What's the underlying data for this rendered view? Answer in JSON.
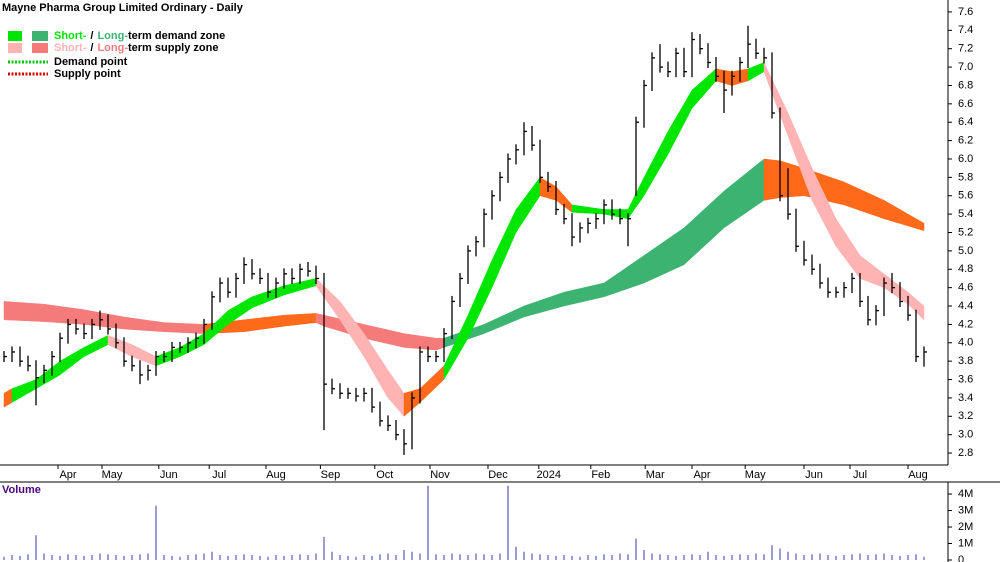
{
  "title": "Mayne Pharma Group Limited Ordinary - Daily",
  "legend": [
    {
      "short": "Short-",
      "sep": "/",
      "long": "Long-",
      "rest": "term demand zone",
      "short_color": "#00e600",
      "long_color": "#3cb371"
    },
    {
      "short": "Short-",
      "sep": "/",
      "long": "Long-",
      "rest": "term supply zone",
      "short_color": "#ffb3b3",
      "long_color": "#f57b7b"
    },
    {
      "label": "Demand point",
      "color": "#00cc00"
    },
    {
      "label": "Supply point",
      "color": "#e00000"
    }
  ],
  "chart_data": [
    {
      "type": "ohlc",
      "color": "#000000",
      "xlim": [
        -0.5,
        118
      ],
      "xticks": [
        {
          "value": 8,
          "label": "Apr"
        },
        {
          "value": 13.5,
          "label": "May"
        },
        {
          "value": 20.6,
          "label": "Jun"
        },
        {
          "value": 26.9,
          "label": "Jul"
        },
        {
          "value": 34,
          "label": "Aug"
        },
        {
          "value": 40.8,
          "label": "Sep"
        },
        {
          "value": 47.6,
          "label": "Oct"
        },
        {
          "value": 54.5,
          "label": "Nov"
        },
        {
          "value": 61.75,
          "label": "Dec"
        },
        {
          "value": 68.1,
          "label": "2024"
        },
        {
          "value": 74.6,
          "label": "Feb"
        },
        {
          "value": 81.4,
          "label": "Mar"
        },
        {
          "value": 87.25,
          "label": "Apr"
        },
        {
          "value": 93.9,
          "label": "May"
        },
        {
          "value": 101.25,
          "label": "Jun"
        },
        {
          "value": 107,
          "label": "Jul"
        },
        {
          "value": 114.25,
          "label": "Aug"
        }
      ],
      "ylim": [
        2.67,
        7.73
      ],
      "yticks": [
        2.8,
        {
          "value": 3,
          "label": "3.0"
        },
        3.2,
        3.4,
        3.6,
        3.8,
        {
          "value": 4,
          "label": "4.0"
        },
        4.2,
        4.4,
        4.6,
        4.8,
        {
          "value": 5,
          "label": "5.0"
        },
        5.2,
        5.4,
        5.6,
        5.8,
        {
          "value": 6,
          "label": "6.0"
        },
        6.2,
        6.4,
        6.6,
        6.8,
        {
          "value": 7,
          "label": "7.0"
        },
        7.2,
        7.4,
        7.6
      ],
      "high": [
        3.91,
        3.96,
        3.96,
        3.86,
        3.81,
        3.76,
        3.91,
        4.11,
        4.26,
        4.26,
        4.21,
        4.26,
        4.35,
        4.31,
        4.21,
        4.06,
        3.86,
        3.81,
        3.76,
        3.91,
        3.91,
        4.01,
        4.01,
        4.06,
        4.11,
        4.26,
        4.56,
        4.71,
        4.71,
        4.76,
        4.93,
        4.91,
        4.81,
        4.76,
        4.71,
        4.81,
        4.81,
        4.86,
        4.88,
        4.84,
        4.76,
        3.61,
        3.56,
        3.51,
        3.51,
        3.51,
        3.51,
        3.36,
        3.21,
        3.16,
        3.06,
        3.46,
        3.96,
        3.96,
        3.91,
        4.16,
        4.51,
        4.76,
        5.06,
        5.16,
        5.46,
        5.66,
        5.86,
        6.06,
        6.16,
        6.4,
        6.36,
        6.21,
        5.86,
        5.76,
        5.51,
        5.41,
        5.31,
        5.36,
        5.41,
        5.56,
        5.56,
        5.46,
        5.41,
        6.46,
        6.86,
        7.16,
        7.25,
        7.06,
        7.21,
        7.21,
        7.38,
        7.36,
        7.26,
        7.11,
        6.96,
        6.96,
        7.11,
        7.45,
        7.31,
        7.21,
        7.16,
        6.56,
        5.9,
        5.46,
        5.11,
        4.96,
        4.86,
        4.71,
        4.61,
        4.66,
        4.76,
        4.76,
        4.51,
        4.41,
        4.71,
        4.76,
        4.66,
        4.51,
        4.36,
        3.96
      ],
      "low": [
        3.79,
        3.79,
        3.74,
        3.69,
        3.32,
        3.56,
        3.64,
        3.79,
        3.99,
        4.09,
        4.04,
        4.04,
        4.14,
        4.09,
        3.94,
        3.74,
        3.69,
        3.55,
        3.59,
        3.64,
        3.79,
        3.79,
        3.89,
        3.89,
        3.94,
        3.99,
        4.14,
        4.44,
        4.49,
        4.49,
        4.64,
        4.69,
        4.64,
        4.49,
        4.49,
        4.59,
        4.64,
        4.64,
        4.72,
        4.64,
        3.05,
        3.44,
        3.39,
        3.39,
        3.36,
        3.36,
        3.24,
        3.09,
        3.04,
        2.94,
        2.78,
        2.84,
        3.34,
        3.79,
        3.79,
        3.79,
        4.04,
        4.39,
        4.64,
        4.94,
        5.04,
        5.34,
        5.54,
        5.74,
        5.94,
        6.04,
        6.09,
        5.74,
        5.64,
        5.39,
        5.29,
        5.05,
        5.09,
        5.19,
        5.24,
        5.29,
        5.34,
        5.29,
        5.05,
        5.6,
        6.34,
        6.74,
        6.94,
        6.89,
        6.89,
        6.89,
        6.89,
        7.14,
        6.99,
        6.84,
        6.5,
        6.69,
        6.84,
        6.99,
        7.09,
        7.04,
        6.44,
        5.54,
        5.34,
        4.99,
        4.84,
        4.74,
        4.59,
        4.49,
        4.49,
        4.49,
        4.54,
        4.39,
        4.19,
        4.19,
        4.29,
        4.54,
        4.39,
        4.24,
        3.79,
        3.74
      ],
      "close": [
        3.85,
        3.9,
        3.8,
        3.75,
        3.62,
        3.7,
        3.85,
        4.05,
        4.2,
        4.15,
        4.1,
        4.2,
        4.25,
        4.15,
        4.0,
        3.8,
        3.75,
        3.65,
        3.7,
        3.85,
        3.85,
        3.95,
        3.95,
        4.0,
        4.05,
        4.2,
        4.5,
        4.65,
        4.55,
        4.7,
        4.85,
        4.75,
        4.7,
        4.55,
        4.65,
        4.75,
        4.7,
        4.8,
        4.78,
        4.7,
        3.55,
        3.5,
        3.45,
        3.45,
        3.42,
        3.45,
        3.3,
        3.15,
        3.1,
        3.0,
        2.9,
        3.4,
        3.9,
        3.85,
        3.85,
        4.1,
        4.45,
        4.7,
        5.0,
        5.1,
        5.4,
        5.6,
        5.8,
        6.0,
        6.1,
        6.3,
        6.15,
        5.8,
        5.7,
        5.45,
        5.35,
        5.15,
        5.25,
        5.3,
        5.35,
        5.5,
        5.4,
        5.35,
        5.35,
        6.4,
        6.8,
        7.1,
        7.0,
        6.95,
        7.15,
        6.95,
        7.3,
        7.2,
        7.05,
        6.9,
        6.75,
        6.9,
        7.05,
        7.25,
        7.15,
        7.1,
        6.5,
        5.6,
        5.4,
        5.05,
        4.9,
        4.8,
        4.65,
        4.55,
        4.55,
        4.6,
        4.7,
        4.45,
        4.25,
        4.35,
        4.65,
        4.6,
        4.45,
        4.3,
        3.85,
        3.9
      ],
      "long_term_zones": [
        {
          "color": "#f57b7b",
          "x": [
            0,
            5,
            10,
            15,
            20,
            25
          ],
          "upper": [
            4.45,
            4.42,
            4.36,
            4.28,
            4.22,
            4.2
          ],
          "lower": [
            4.25,
            4.23,
            4.2,
            4.15,
            4.12,
            4.1
          ]
        },
        {
          "color": "#ff6a1a",
          "x": [
            25,
            30,
            35,
            39
          ],
          "upper": [
            4.2,
            4.25,
            4.3,
            4.32
          ],
          "lower": [
            4.1,
            4.12,
            4.18,
            4.22
          ]
        },
        {
          "color": "#f57b7b",
          "x": [
            39,
            40,
            45,
            50,
            54,
            55
          ],
          "upper": [
            4.32,
            4.3,
            4.2,
            4.1,
            4.05,
            4.05
          ],
          "lower": [
            4.22,
            4.18,
            4.05,
            3.95,
            3.92,
            3.95
          ]
        },
        {
          "color": "#3cb371",
          "x": [
            55,
            60,
            65,
            70,
            75,
            80,
            85,
            90,
            95
          ],
          "upper": [
            4.05,
            4.2,
            4.4,
            4.55,
            4.65,
            4.95,
            5.25,
            5.65,
            6.0
          ],
          "lower": [
            3.95,
            4.1,
            4.28,
            4.4,
            4.5,
            4.65,
            4.85,
            5.25,
            5.55
          ]
        },
        {
          "color": "#ff6a1a",
          "x": [
            95,
            97,
            100,
            105,
            110,
            115
          ],
          "upper": [
            6.0,
            5.98,
            5.9,
            5.75,
            5.55,
            5.3
          ],
          "lower": [
            5.55,
            5.58,
            5.6,
            5.5,
            5.35,
            5.22
          ]
        }
      ],
      "short_term_zones": [
        {
          "color": "#ff6a1a",
          "x": [
            0,
            1
          ],
          "upper": [
            3.45,
            3.5
          ],
          "lower": [
            3.3,
            3.35
          ]
        },
        {
          "color": "#00e600",
          "x": [
            1,
            4,
            7,
            10,
            13
          ],
          "upper": [
            3.5,
            3.6,
            3.8,
            3.95,
            4.08
          ],
          "lower": [
            3.35,
            3.5,
            3.65,
            3.85,
            3.98
          ]
        },
        {
          "color": "#ffb3b3",
          "x": [
            13,
            16,
            19
          ],
          "upper": [
            4.08,
            3.98,
            3.85
          ],
          "lower": [
            3.98,
            3.85,
            3.75
          ]
        },
        {
          "color": "#00e600",
          "x": [
            19,
            22,
            25,
            28,
            31,
            35,
            39
          ],
          "upper": [
            3.85,
            3.95,
            4.1,
            4.35,
            4.5,
            4.62,
            4.7
          ],
          "lower": [
            3.75,
            3.85,
            3.98,
            4.2,
            4.38,
            4.52,
            4.62
          ]
        },
        {
          "color": "#ffb3b3",
          "x": [
            39,
            42,
            45,
            48,
            50
          ],
          "upper": [
            4.7,
            4.45,
            4.1,
            3.7,
            3.45
          ],
          "lower": [
            4.62,
            4.25,
            3.85,
            3.4,
            3.2
          ]
        },
        {
          "color": "#ff6a1a",
          "x": [
            50,
            52,
            55
          ],
          "upper": [
            3.45,
            3.5,
            3.75
          ],
          "lower": [
            3.2,
            3.35,
            3.6
          ]
        },
        {
          "color": "#00e600",
          "x": [
            55,
            58,
            61,
            64,
            67
          ],
          "upper": [
            3.75,
            4.3,
            4.9,
            5.45,
            5.8
          ],
          "lower": [
            3.6,
            4.05,
            4.6,
            5.2,
            5.6
          ]
        },
        {
          "color": "#ff6a1a",
          "x": [
            67,
            69,
            71
          ],
          "upper": [
            5.8,
            5.7,
            5.5
          ],
          "lower": [
            5.6,
            5.55,
            5.42
          ]
        },
        {
          "color": "#00e600",
          "x": [
            71,
            75,
            78,
            80,
            83,
            86,
            89
          ],
          "upper": [
            5.5,
            5.45,
            5.45,
            5.8,
            6.3,
            6.75,
            6.98
          ],
          "lower": [
            5.42,
            5.4,
            5.35,
            5.6,
            6.05,
            6.55,
            6.85
          ]
        },
        {
          "color": "#ff6a1a",
          "x": [
            89,
            91,
            93
          ],
          "upper": [
            6.98,
            6.95,
            6.98
          ],
          "lower": [
            6.85,
            6.8,
            6.85
          ]
        },
        {
          "color": "#00e600",
          "x": [
            93,
            95
          ],
          "upper": [
            6.98,
            7.05
          ],
          "lower": [
            6.85,
            6.95
          ]
        },
        {
          "color": "#ffb3b3",
          "x": [
            95,
            98,
            101,
            104,
            107,
            110,
            113,
            115
          ],
          "upper": [
            7.05,
            6.5,
            5.9,
            5.35,
            4.95,
            4.75,
            4.55,
            4.4
          ],
          "lower": [
            6.95,
            6.25,
            5.55,
            5.05,
            4.7,
            4.6,
            4.42,
            4.25
          ]
        }
      ]
    },
    {
      "type": "bar",
      "title": "Volume",
      "color": "#3a3aa8",
      "xlim": [
        -0.5,
        118
      ],
      "ylim": [
        0,
        4730000
      ],
      "yticks": [
        0,
        {
          "value": 1000000,
          "label": "1M"
        },
        {
          "value": 2000000,
          "label": "2M"
        },
        {
          "value": 3000000,
          "label": "3M"
        },
        {
          "value": 4000000,
          "label": "4M"
        }
      ],
      "values": [
        200000,
        300000,
        250000,
        350000,
        1500000,
        400000,
        300000,
        250000,
        350000,
        300000,
        250000,
        300000,
        400000,
        350000,
        300000,
        250000,
        300000,
        350000,
        400000,
        3300000,
        300000,
        250000,
        200000,
        300000,
        350000,
        400000,
        500000,
        300000,
        250000,
        300000,
        350000,
        300000,
        250000,
        200000,
        300000,
        250000,
        300000,
        350000,
        300000,
        400000,
        1400000,
        500000,
        300000,
        250000,
        200000,
        300000,
        250000,
        350000,
        400000,
        300000,
        600000,
        500000,
        400000,
        4500000,
        350000,
        300000,
        400000,
        350000,
        300000,
        400000,
        350000,
        300000,
        400000,
        4500000,
        800000,
        500000,
        400000,
        350000,
        300000,
        250000,
        300000,
        250000,
        200000,
        300000,
        250000,
        350000,
        300000,
        400000,
        350000,
        1300000,
        600000,
        400000,
        350000,
        300000,
        250000,
        300000,
        350000,
        300000,
        500000,
        300000,
        250000,
        300000,
        350000,
        300000,
        400000,
        350000,
        900000,
        700000,
        500000,
        400000,
        300000,
        350000,
        400000,
        300000,
        250000,
        300000,
        350000,
        400000,
        300000,
        350000,
        400000,
        300000,
        250000,
        300000,
        350000,
        200000
      ]
    }
  ]
}
